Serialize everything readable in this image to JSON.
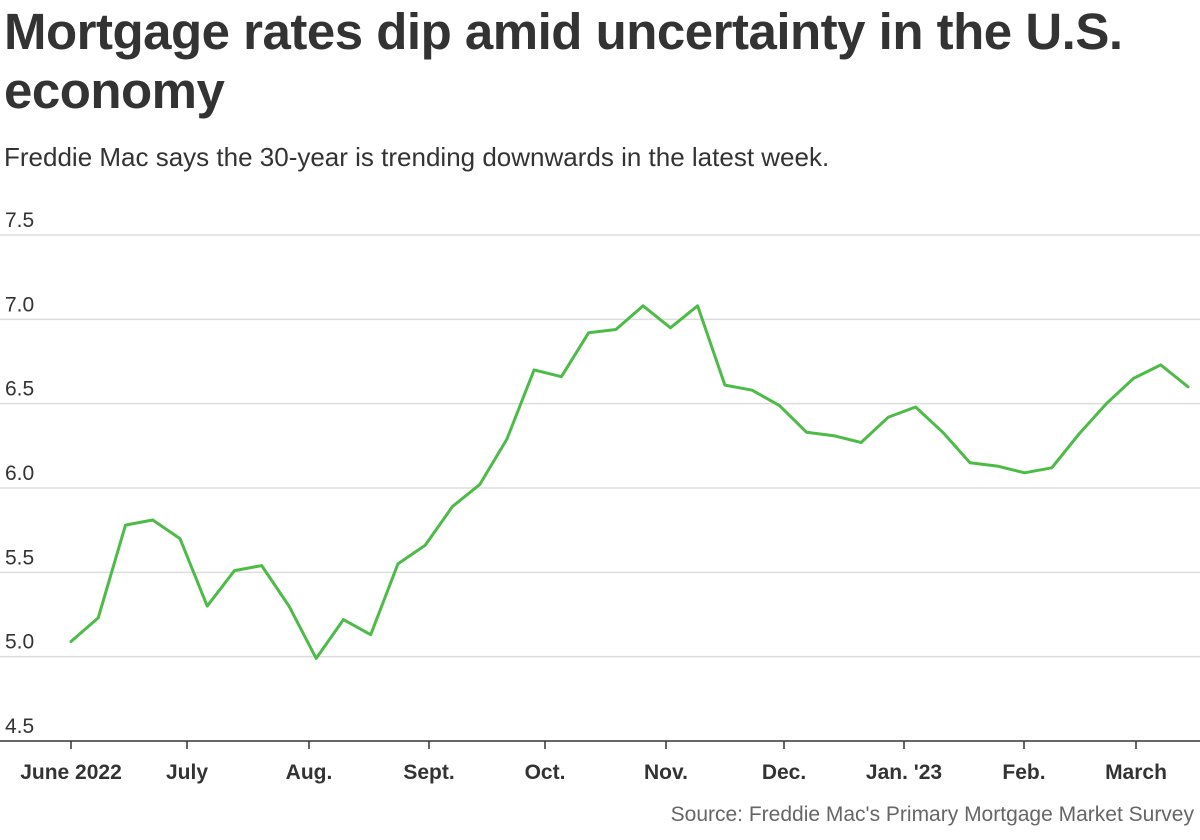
{
  "header": {
    "title": "Mortgage rates dip amid uncertainty in the U.S. economy",
    "subtitle": "Freddie Mac says the 30-year is trending downwards in the latest week."
  },
  "footer": {
    "source": "Source: Freddie Mac's Primary Mortgage Market Survey"
  },
  "chart_data": {
    "type": "line",
    "title": "Mortgage rates dip amid uncertainty in the U.S. economy",
    "subtitle": "Freddie Mac says the 30-year is trending downwards in the latest week.",
    "xlabel": "",
    "ylabel": "",
    "ylim": [
      4.5,
      7.5
    ],
    "yticks": [
      "7.5",
      "7.0",
      "6.5",
      "6.0",
      "5.5",
      "5.0",
      "4.5"
    ],
    "xticks": [
      "June 2022",
      "July",
      "Aug.",
      "Sept.",
      "Oct.",
      "Nov.",
      "Dec.",
      "Jan. '23",
      "Feb.",
      "March"
    ],
    "grid": true,
    "legend": "none",
    "line_color": "#4cbb47",
    "series": [
      {
        "values": [
          5.09,
          5.23,
          5.78,
          5.81,
          5.7,
          5.3,
          5.51,
          5.54,
          5.3,
          4.99,
          5.22,
          5.13,
          5.55,
          5.66,
          5.89,
          6.02,
          6.29,
          6.7,
          6.66,
          6.92,
          6.94,
          7.08,
          6.95,
          7.08,
          6.61,
          6.58,
          6.49,
          6.33,
          6.31,
          6.27,
          6.42,
          6.48,
          6.33,
          6.15,
          6.13,
          6.09,
          6.12,
          6.32,
          6.5,
          6.65,
          6.73,
          6.6
        ]
      }
    ]
  }
}
